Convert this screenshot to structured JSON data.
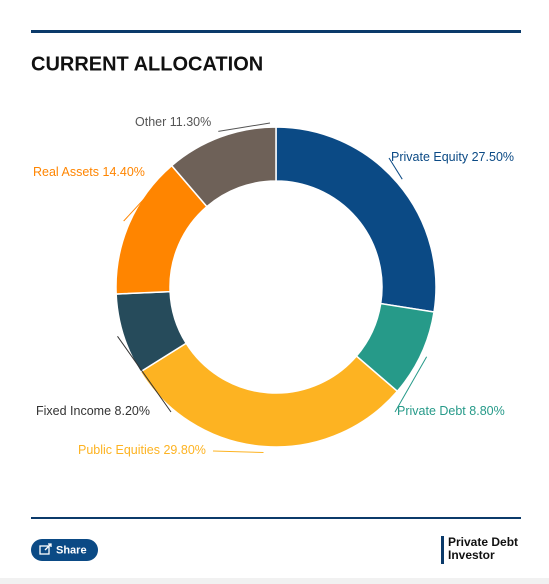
{
  "chart_data": {
    "type": "donut",
    "title": "CURRENT ALLOCATION",
    "categories": [
      "Private Equity",
      "Private Debt",
      "Public Equities",
      "Fixed Income",
      "Real Assets",
      "Other"
    ],
    "values": [
      27.5,
      8.8,
      29.8,
      8.2,
      14.4,
      11.3
    ],
    "value_labels": [
      "27.50%",
      "8.80%",
      "29.80%",
      "8.20%",
      "14.40%",
      "11.30%"
    ],
    "colors": [
      "#0b4a85",
      "#269a89",
      "#fdb322",
      "#264b5b",
      "#ff8500",
      "#6e6158"
    ]
  },
  "share": "Share",
  "brand": [
    "Private Debt",
    "Investor"
  ]
}
